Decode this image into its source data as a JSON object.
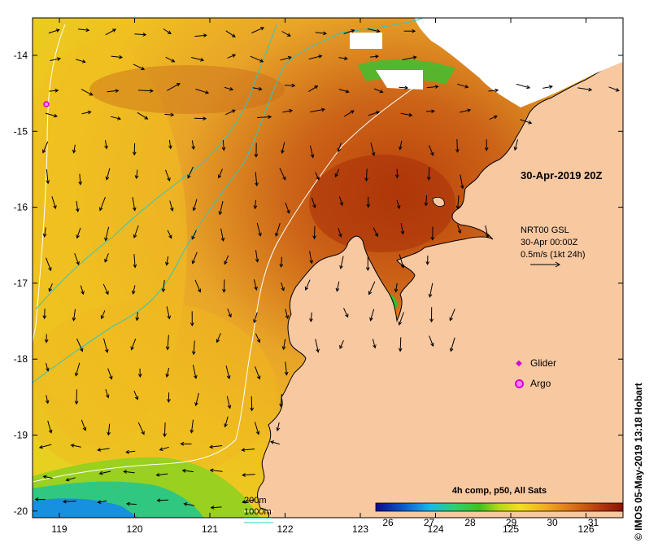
{
  "map": {
    "x_ticks": [
      "119",
      "120",
      "121",
      "122",
      "123",
      "124",
      "125",
      "126"
    ],
    "y_ticks": [
      "-14",
      "-15",
      "-16",
      "-17",
      "-18",
      "-19",
      "-20"
    ],
    "date_label": "30-Apr-2019 20Z",
    "vector_legend": {
      "line1": "NRT00 GSL",
      "line2": "30-Apr 00:00Z",
      "line3": "0.5m/s (1kt 24h)"
    },
    "symbol_legend": [
      {
        "label": "Glider",
        "icon": "glider-diamond-icon"
      },
      {
        "label": "Argo",
        "icon": "argo-circle-icon"
      }
    ],
    "depth_legend": {
      "contour_200": "200m",
      "contour_1000": "1000m",
      "colors": {
        "200m": "#ffffff",
        "1000m": "#2ec8c0"
      }
    },
    "colorbar": {
      "title": "4h comp, p50, All Sats",
      "ticks": [
        "26",
        "27",
        "28",
        "29",
        "30",
        "31"
      ]
    },
    "credit": "© IMOS 05-May-2019 13:18 Hobart",
    "colors": {
      "land": "#f8c8a0",
      "coast": "#000000",
      "glider": "#d800d8"
    }
  }
}
